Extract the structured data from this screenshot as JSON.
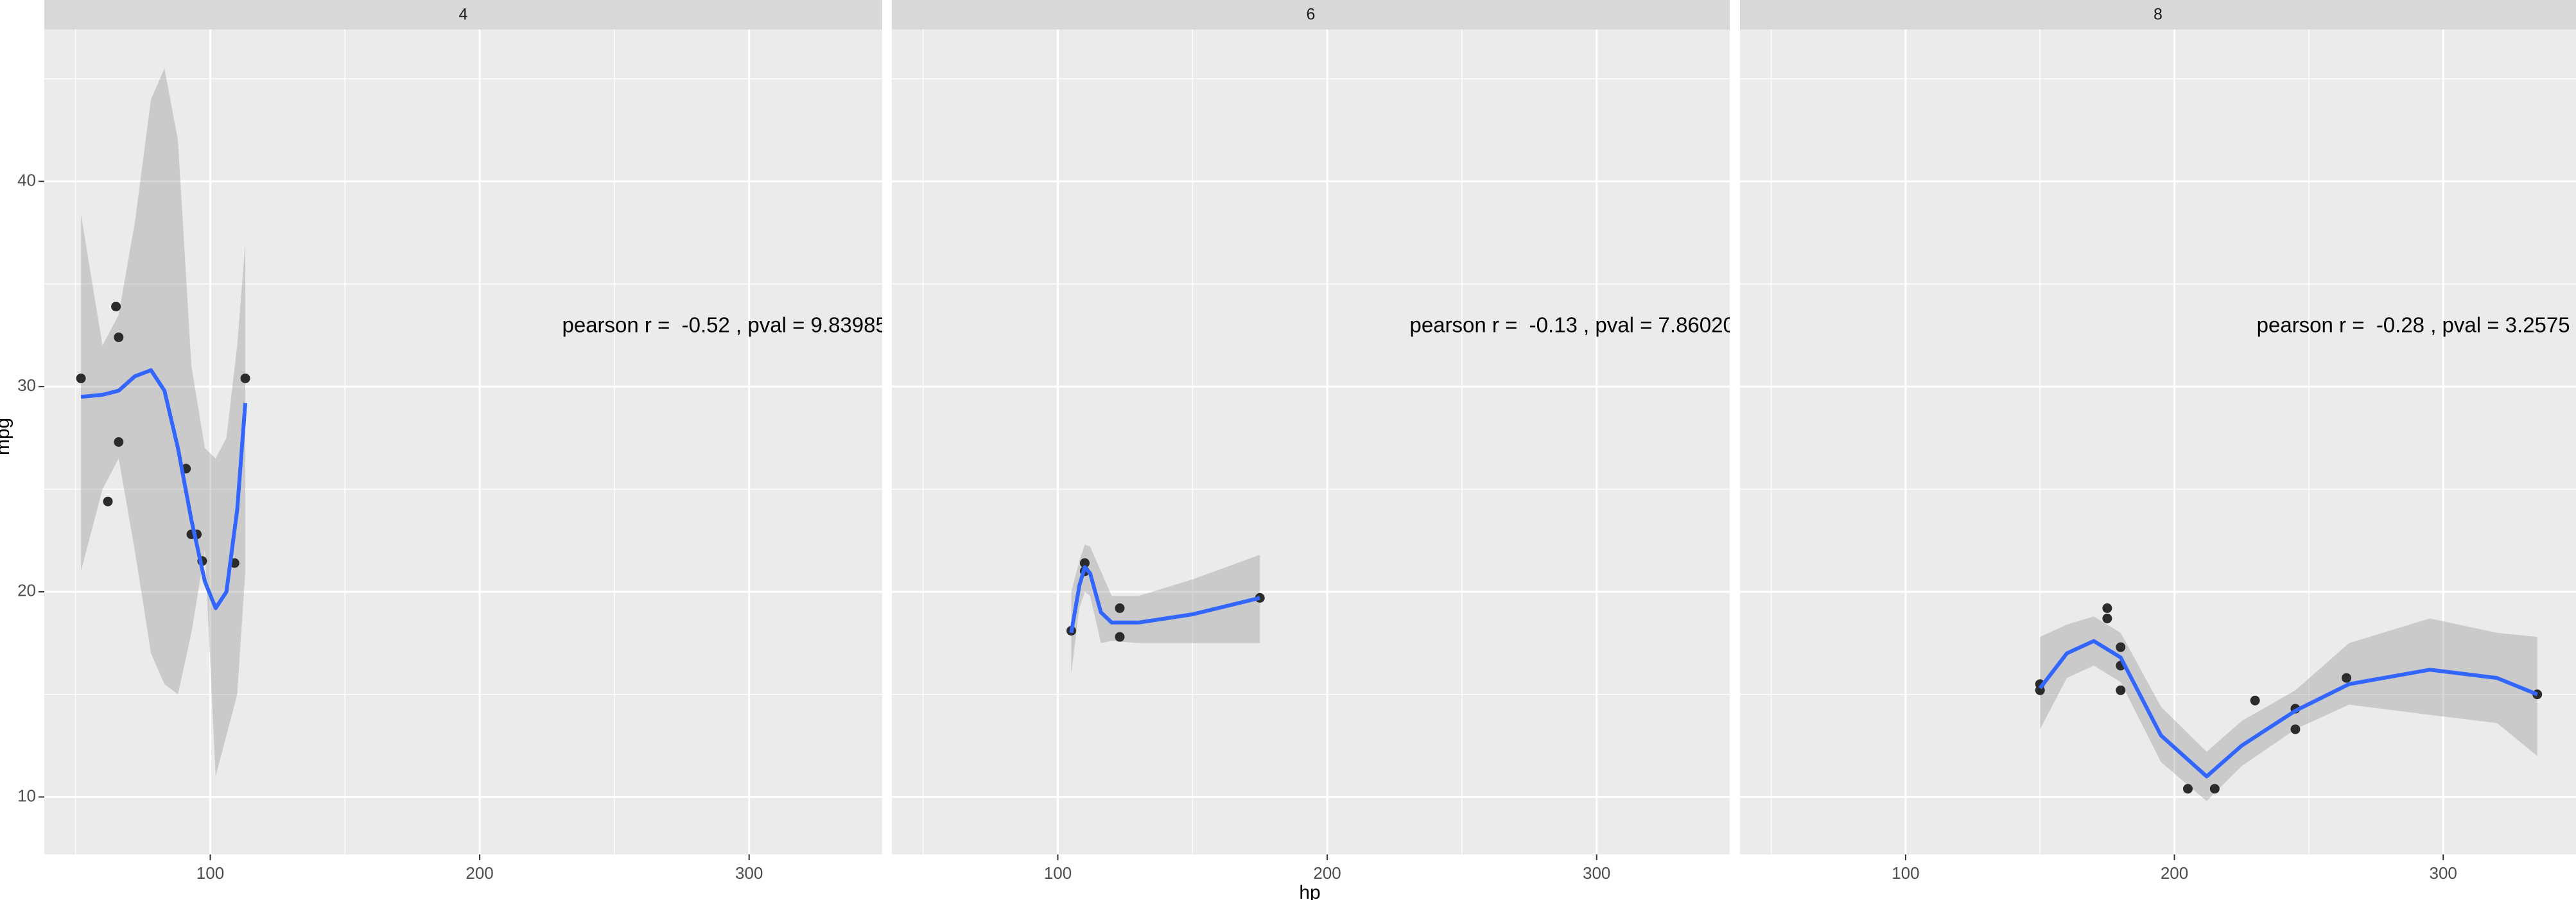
{
  "chart_data": {
    "type": "scatter",
    "x_label": "hp",
    "y_label": "mpg",
    "grid": true,
    "xlim": [
      38.4,
      349.4
    ],
    "ylim": [
      7.2,
      47.4
    ],
    "xticks": [
      100,
      200,
      300
    ],
    "yticks": [
      10,
      20,
      30,
      40
    ],
    "point_color": "#2b2b2b",
    "line_color": "#3366ff",
    "ribbon_color": "#999999",
    "panels": [
      {
        "strip": "4",
        "annotation": "pearson r =  -0.52 , pval = 9.83985",
        "x": [
          93,
          62,
          95,
          66,
          52,
          65,
          97,
          66,
          91,
          113,
          109
        ],
        "values": [
          22.8,
          24.4,
          22.8,
          32.4,
          30.4,
          33.9,
          21.5,
          27.3,
          26.0,
          30.4,
          21.4
        ],
        "smooth": {
          "x": [
            52,
            60,
            66,
            72,
            78,
            83,
            88,
            93,
            98,
            102,
            106,
            110,
            113
          ],
          "values": [
            29.5,
            29.6,
            29.8,
            30.5,
            30.8,
            29.8,
            27,
            23.5,
            20.5,
            19.2,
            20,
            24,
            29.2
          ],
          "lower": [
            21,
            25,
            26.5,
            22,
            17,
            15.5,
            15,
            18,
            22,
            11,
            13,
            15,
            21
          ],
          "upper": [
            38.4,
            32,
            33.5,
            38,
            44,
            45.5,
            42,
            31,
            27,
            26.5,
            27.5,
            32,
            37
          ]
        }
      },
      {
        "strip": "6",
        "annotation": "pearson r =  -0.13 , pval = 7.86020",
        "x": [
          110,
          110,
          110,
          105,
          123,
          123,
          175
        ],
        "values": [
          21.0,
          21.0,
          21.4,
          18.1,
          19.2,
          17.8,
          19.7
        ],
        "smooth": {
          "x": [
            105,
            108,
            110,
            112,
            116,
            120,
            130,
            150,
            175
          ],
          "values": [
            18,
            20.3,
            21.2,
            20.9,
            19,
            18.5,
            18.5,
            18.9,
            19.7
          ],
          "lower": [
            16,
            19.2,
            20,
            19.8,
            17.5,
            17.6,
            17.5,
            17.5,
            17.5
          ],
          "upper": [
            20,
            21.5,
            22.3,
            22.2,
            21,
            19.8,
            19.8,
            20.6,
            21.8
          ]
        }
      },
      {
        "strip": "8",
        "annotation": "pearson r =  -0.28 , pval = 3.2575",
        "x": [
          175,
          245,
          180,
          180,
          180,
          205,
          215,
          230,
          150,
          150,
          245,
          175,
          264,
          335
        ],
        "values": [
          18.7,
          14.3,
          16.4,
          17.3,
          15.2,
          10.4,
          10.4,
          14.7,
          15.5,
          15.2,
          13.3,
          19.2,
          15.8,
          15.0
        ],
        "smooth": {
          "x": [
            150,
            160,
            170,
            180,
            195,
            212,
            225,
            245,
            265,
            295,
            320,
            335
          ],
          "values": [
            15.3,
            17,
            17.6,
            16.8,
            13,
            11,
            12.5,
            14.2,
            15.5,
            16.2,
            15.8,
            15.0
          ],
          "lower": [
            13.3,
            15.8,
            16.4,
            15.6,
            11.7,
            9.8,
            11.5,
            13.3,
            14.5,
            14,
            13.6,
            12
          ],
          "upper": [
            17.8,
            18.4,
            18.8,
            18,
            14.4,
            12.2,
            13.7,
            15.2,
            17.5,
            18.7,
            18,
            17.8
          ]
        }
      }
    ]
  }
}
